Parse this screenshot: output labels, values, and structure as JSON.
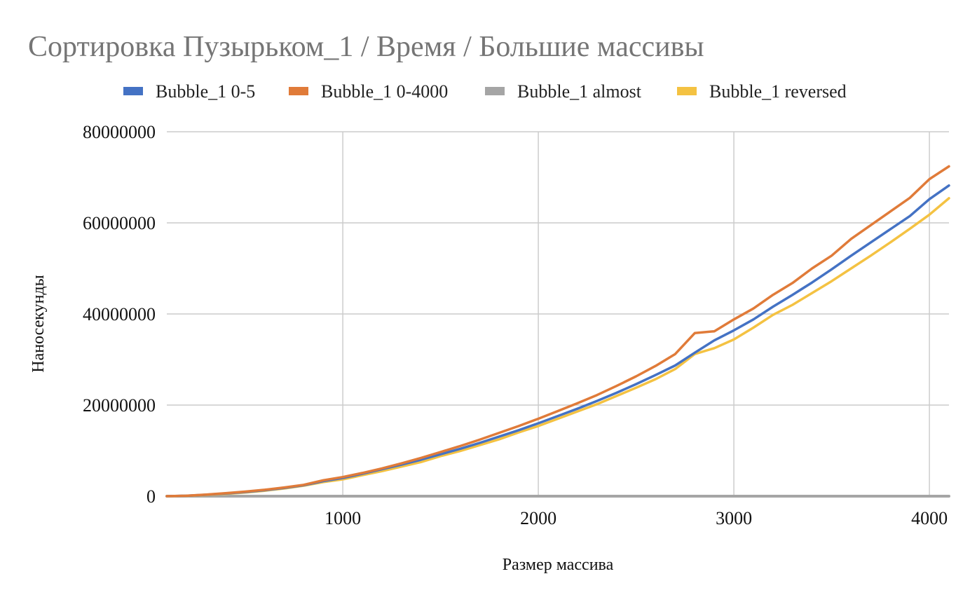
{
  "chart_data": {
    "type": "line",
    "title": "Сортировка Пузырьком_1 / Время / Большие массивы",
    "xlabel": "Размер массива",
    "ylabel": "Наносекунды",
    "xlim": [
      100,
      4100
    ],
    "ylim": [
      0,
      80000000
    ],
    "x_ticks": [
      1000,
      2000,
      3000,
      4000
    ],
    "y_ticks": [
      0,
      20000000,
      40000000,
      60000000,
      80000000
    ],
    "grid": true,
    "legend_position": "top",
    "series": [
      {
        "name": "Bubble_1 0-5",
        "color": "#4472c4",
        "points": [
          [
            100,
            0
          ],
          [
            200,
            100000
          ],
          [
            300,
            300000
          ],
          [
            400,
            600000
          ],
          [
            500,
            900000
          ],
          [
            600,
            1300000
          ],
          [
            700,
            1800000
          ],
          [
            800,
            2400000
          ],
          [
            900,
            3300000
          ],
          [
            1000,
            4000000
          ],
          [
            1100,
            4900000
          ],
          [
            1200,
            5900000
          ],
          [
            1300,
            6900000
          ],
          [
            1400,
            8000000
          ],
          [
            1500,
            9200000
          ],
          [
            1600,
            10400000
          ],
          [
            1700,
            11700000
          ],
          [
            1800,
            13100000
          ],
          [
            1900,
            14500000
          ],
          [
            2000,
            16000000
          ],
          [
            2100,
            17600000
          ],
          [
            2200,
            19200000
          ],
          [
            2300,
            20900000
          ],
          [
            2400,
            22700000
          ],
          [
            2500,
            24600000
          ],
          [
            2600,
            26600000
          ],
          [
            2700,
            28700000
          ],
          [
            2800,
            31500000
          ],
          [
            2900,
            34200000
          ],
          [
            3000,
            36400000
          ],
          [
            3100,
            38800000
          ],
          [
            3200,
            41600000
          ],
          [
            3300,
            44200000
          ],
          [
            3400,
            46900000
          ],
          [
            3500,
            49800000
          ],
          [
            3600,
            52800000
          ],
          [
            3700,
            55700000
          ],
          [
            3800,
            58600000
          ],
          [
            3900,
            61500000
          ],
          [
            4000,
            65200000
          ],
          [
            4100,
            68200000
          ]
        ]
      },
      {
        "name": "Bubble_1 0-4000",
        "color": "#e07b39",
        "points": [
          [
            100,
            0
          ],
          [
            200,
            100000
          ],
          [
            300,
            350000
          ],
          [
            400,
            650000
          ],
          [
            500,
            1000000
          ],
          [
            600,
            1400000
          ],
          [
            700,
            1900000
          ],
          [
            800,
            2500000
          ],
          [
            900,
            3500000
          ],
          [
            1000,
            4200000
          ],
          [
            1100,
            5100000
          ],
          [
            1200,
            6100000
          ],
          [
            1300,
            7200000
          ],
          [
            1400,
            8400000
          ],
          [
            1500,
            9700000
          ],
          [
            1600,
            11000000
          ],
          [
            1700,
            12400000
          ],
          [
            1800,
            13900000
          ],
          [
            1900,
            15400000
          ],
          [
            2000,
            17000000
          ],
          [
            2100,
            18700000
          ],
          [
            2200,
            20400000
          ],
          [
            2300,
            22200000
          ],
          [
            2400,
            24200000
          ],
          [
            2500,
            26300000
          ],
          [
            2600,
            28600000
          ],
          [
            2700,
            31200000
          ],
          [
            2800,
            35800000
          ],
          [
            2900,
            36200000
          ],
          [
            3000,
            38800000
          ],
          [
            3100,
            41200000
          ],
          [
            3200,
            44200000
          ],
          [
            3300,
            46800000
          ],
          [
            3400,
            50000000
          ],
          [
            3500,
            52800000
          ],
          [
            3600,
            56500000
          ],
          [
            3700,
            59500000
          ],
          [
            3800,
            62500000
          ],
          [
            3900,
            65500000
          ],
          [
            4000,
            69600000
          ],
          [
            4100,
            72400000
          ]
        ]
      },
      {
        "name": "Bubble_1 almost",
        "color": "#a5a5a5",
        "points": [
          [
            100,
            0
          ],
          [
            500,
            0
          ],
          [
            1000,
            0
          ],
          [
            1500,
            0
          ],
          [
            2000,
            0
          ],
          [
            2500,
            0
          ],
          [
            3000,
            0
          ],
          [
            3500,
            0
          ],
          [
            4000,
            0
          ],
          [
            4100,
            0
          ]
        ]
      },
      {
        "name": "Bubble_1 reversed",
        "color": "#f4c242",
        "points": [
          [
            100,
            0
          ],
          [
            200,
            80000
          ],
          [
            300,
            250000
          ],
          [
            400,
            500000
          ],
          [
            500,
            800000
          ],
          [
            600,
            1200000
          ],
          [
            700,
            1700000
          ],
          [
            800,
            2300000
          ],
          [
            900,
            3100000
          ],
          [
            1000,
            3700000
          ],
          [
            1100,
            4600000
          ],
          [
            1200,
            5500000
          ],
          [
            1300,
            6500000
          ],
          [
            1400,
            7500000
          ],
          [
            1500,
            8800000
          ],
          [
            1600,
            9900000
          ],
          [
            1700,
            11200000
          ],
          [
            1800,
            12500000
          ],
          [
            1900,
            14000000
          ],
          [
            2000,
            15400000
          ],
          [
            2100,
            17000000
          ],
          [
            2200,
            18600000
          ],
          [
            2300,
            20200000
          ],
          [
            2400,
            22000000
          ],
          [
            2500,
            23800000
          ],
          [
            2600,
            25700000
          ],
          [
            2700,
            27900000
          ],
          [
            2800,
            31200000
          ],
          [
            2900,
            32500000
          ],
          [
            3000,
            34400000
          ],
          [
            3100,
            37000000
          ],
          [
            3200,
            39800000
          ],
          [
            3300,
            42000000
          ],
          [
            3400,
            44600000
          ],
          [
            3500,
            47200000
          ],
          [
            3600,
            50000000
          ],
          [
            3700,
            52800000
          ],
          [
            3800,
            55700000
          ],
          [
            3900,
            58700000
          ],
          [
            4000,
            61800000
          ],
          [
            4100,
            65400000
          ]
        ]
      }
    ]
  }
}
